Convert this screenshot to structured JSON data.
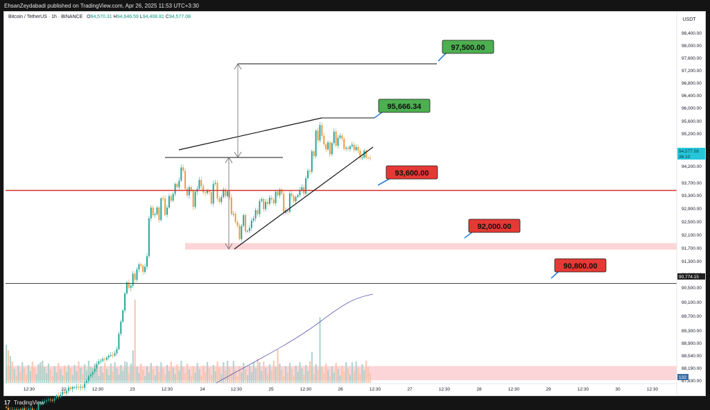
{
  "header": {
    "published": "EhsanZeydabadi published on TradingView.com, Apr 26, 2025 11:53 UTC+3:30"
  },
  "legend": {
    "symbol": "Bitcoin / TetherUS · 1h · BINANCE",
    "open_label": "O",
    "open": "94,570.31",
    "high_label": "H",
    "high": "94,646.59",
    "low_label": "L",
    "low": "94,408.81",
    "close_label": "C",
    "close": "94,577.08"
  },
  "footer": {
    "logo_glyph": "17",
    "brand": "TradingView"
  },
  "colors": {
    "up": "#26a69a",
    "down": "#ef9a3a",
    "resistance": "#d32f2f",
    "green_label": "#4caf50",
    "red_label": "#e53935",
    "zone": "#fcd5d8",
    "ma": "#5c5cb0",
    "price_badge": "#26c6da"
  },
  "chart_data": {
    "type": "candlestick",
    "symbol": "BTCUSDT",
    "interval": "1h",
    "currency": "USDT",
    "y_axis_labels": [
      "98,400.00",
      "98,000.00",
      "97,600.00",
      "97,200.00",
      "96,800.00",
      "96,400.00",
      "96,000.00",
      "95,600.00",
      "95,200.00",
      "94,700.00",
      "94,200.00",
      "93,700.00",
      "93,300.00",
      "92,900.00",
      "92,500.00",
      "92,100.00",
      "91,700.00",
      "91,300.00",
      "90,900.00",
      "90,500.00",
      "90,100.00",
      "89,700.00",
      "89,300.00",
      "88,900.00",
      "88,540.00",
      "88,190.00",
      "87,830.00"
    ],
    "x_axis_labels": [
      "12:30",
      "22",
      "12:30",
      "23",
      "12:30",
      "24",
      "12:30",
      "25",
      "12:30",
      "26",
      "12:30",
      "27",
      "12:30",
      "28",
      "12:30",
      "29",
      "12:30",
      "30",
      "12:30"
    ],
    "price_badges": [
      {
        "text": "94,577.08",
        "type": "last_price"
      },
      {
        "text": "36:10",
        "type": "countdown"
      },
      {
        "text": "90,774.15",
        "type": "level"
      },
      {
        "text": "132",
        "type": "volume"
      }
    ],
    "target_labels": [
      {
        "text": "97,500.00",
        "kind": "target",
        "color": "green"
      },
      {
        "text": "95,666.34",
        "kind": "target",
        "color": "green"
      },
      {
        "text": "93,600.00",
        "kind": "support",
        "color": "red"
      },
      {
        "text": "92,000.00",
        "kind": "support",
        "color": "red"
      },
      {
        "text": "90,800.00",
        "kind": "support",
        "color": "red"
      }
    ],
    "horizontal_levels": [
      93600,
      90774.15
    ],
    "zones": [
      {
        "from": 91800,
        "to": 92000
      },
      {
        "from": 87830,
        "to": 88260
      }
    ],
    "candle_closes": [
      86990,
      86928,
      86930,
      86913,
      86938,
      86915,
      86941,
      86924,
      86976,
      86919,
      86917,
      86960,
      86968,
      86907,
      86904,
      86923,
      87101,
      87137,
      87157,
      87184,
      87214,
      87244,
      87230,
      87203,
      87283,
      87365,
      87320,
      87392,
      87480,
      87434,
      87498,
      87607,
      87561,
      87620,
      87621,
      87626,
      87605,
      87629,
      87597,
      87743,
      87812,
      87946,
      87995,
      88086,
      88179,
      88323,
      88401,
      88418,
      88473,
      88455,
      88516,
      88575,
      88591,
      88578,
      88648,
      88773,
      89240,
      89610,
      89950,
      90470,
      90800,
      90640,
      90700,
      91070,
      90880,
      91200,
      91350,
      91310,
      91120,
      91280,
      91600,
      92750,
      93080,
      92850,
      92880,
      93080,
      92700,
      93360,
      93350,
      92860,
      93080,
      93430,
      93290,
      93490,
      93800,
      93700,
      93900,
      94300,
      94200,
      93650,
      93450,
      93700,
      93600,
      93100,
      93560,
      93650,
      93920,
      93730,
      93540,
      93520,
      93590,
      93550,
      93200,
      93800,
      93830,
      93360,
      93250,
      93400,
      93630,
      93430,
      93570,
      93390,
      92880,
      92890,
      92640,
      92530,
      92120,
      92520,
      92850,
      92350,
      92370,
      92460,
      92680,
      92750,
      93000,
      92880,
      93280,
      93340,
      93030,
      93250,
      93190,
      93380,
      93320,
      93210,
      93560,
      93450,
      93630,
      93500,
      92920,
      93000,
      92950,
      93510,
      93430,
      93270,
      93400,
      93460,
      93610,
      93700,
      93500,
      93970,
      94200,
      94170,
      94790,
      94640,
      95420,
      95120,
      95590,
      95260,
      95000,
      94850,
      95060,
      94700,
      95040,
      95390,
      94960,
      95200,
      95270,
      95170,
      94870,
      94900,
      94860,
      94940,
      94990,
      94830,
      94920,
      94810,
      94590,
      94600,
      94810,
      94600,
      94590,
      94577.08
    ],
    "volume_series": "relative volume bars per candle",
    "annotations": [
      "rising wedge",
      "measured move arrows",
      "volume moving average"
    ]
  }
}
